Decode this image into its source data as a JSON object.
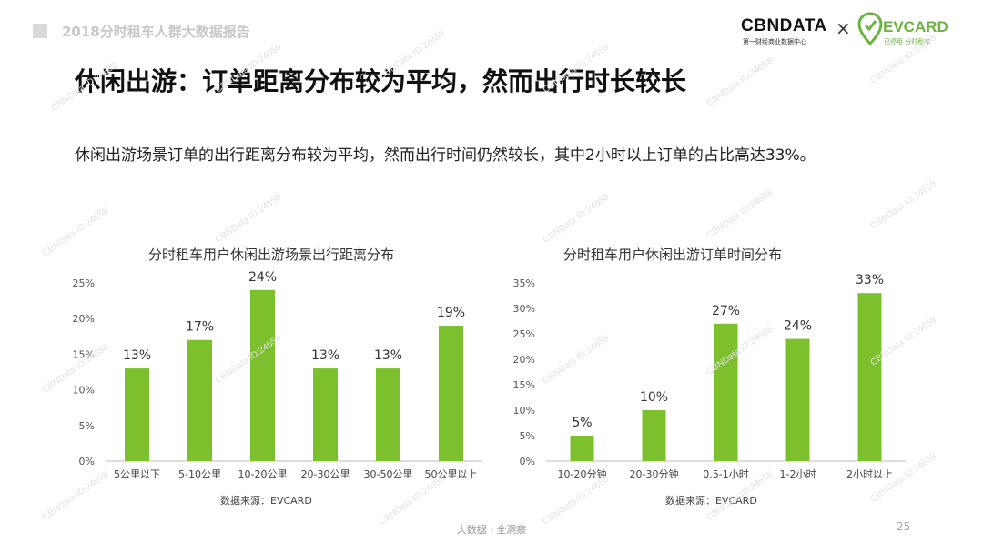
{
  "header": {
    "title": "2018分时租车人群大数据报告"
  },
  "brand": {
    "cbn_logo": "CBNDATA",
    "cbn_tagline": "第一财经商业数据中心",
    "separator": "×",
    "ev_logo": "EVCARD",
    "ev_tagline": "已停用 分时租车"
  },
  "main_title": "休闲出游：订单距离分布较为平均，然而出行时长较长",
  "subtitle": "休闲出游场景订单的出行距离分布较为平均，然而出行时间仍然较长，其中2小时以上订单的占比高达33%。",
  "colors": {
    "bar": "#7dc02e",
    "axis": "#bfbfbf",
    "text": "#333333"
  },
  "chart_data": [
    {
      "type": "bar",
      "title": "分时租车用户休闲出游场景出行距离分布",
      "categories": [
        "5公里以下",
        "5-10公里",
        "10-20公里",
        "20-30公里",
        "30-50公里",
        "50公里以上"
      ],
      "values": [
        13,
        17,
        24,
        13,
        13,
        19
      ],
      "value_labels": [
        "13%",
        "17%",
        "24%",
        "13%",
        "13%",
        "19%"
      ],
      "yticks": [
        "0%",
        "5%",
        "10%",
        "15%",
        "20%",
        "25%"
      ],
      "ylim": [
        0,
        25
      ],
      "source": "数据来源：EVCARD"
    },
    {
      "type": "bar",
      "title": "分时租车用户休闲出游订单时间分布",
      "categories": [
        "10-20分钟",
        "20-30分钟",
        "0.5-1小时",
        "1-2小时",
        "2小时以上"
      ],
      "values": [
        5,
        10,
        27,
        24,
        33
      ],
      "value_labels": [
        "5%",
        "10%",
        "27%",
        "24%",
        "33%"
      ],
      "yticks": [
        "0%",
        "5%",
        "10%",
        "15%",
        "20%",
        "25%",
        "30%",
        "35%"
      ],
      "ylim": [
        0,
        35
      ],
      "source": "数据来源：EVCARD"
    }
  ],
  "footer": {
    "text": "大数据 · 全洞察",
    "page": "25"
  },
  "watermark": "CBNData ID:24658"
}
